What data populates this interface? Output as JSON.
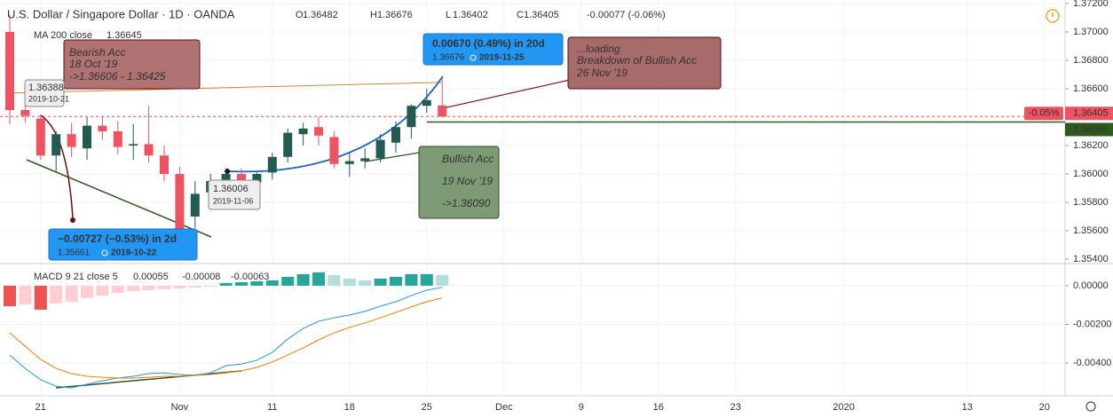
{
  "chart_data": {
    "type": "candlestick",
    "title": "U.S. Dollar / Singapore Dollar · 1D · OANDA",
    "ohlc_labels": [
      "O",
      "H",
      "L",
      "C"
    ],
    "change": "-0.00077 (-0.06%)",
    "x": [
      "2019-10-17",
      "2019-10-18",
      "2019-10-21",
      "2019-10-22",
      "2019-10-23",
      "2019-10-24",
      "2019-10-25",
      "2019-10-28",
      "2019-10-29",
      "2019-10-30",
      "2019-10-31",
      "2019-11-01",
      "2019-11-04",
      "2019-11-05",
      "2019-11-06",
      "2019-11-07",
      "2019-11-08",
      "2019-11-11",
      "2019-11-12",
      "2019-11-13",
      "2019-11-14",
      "2019-11-15",
      "2019-11-18",
      "2019-11-19",
      "2019-11-20",
      "2019-11-21",
      "2019-11-22",
      "2019-11-25",
      "2019-11-26"
    ],
    "open": [
      1.37,
      1.3645,
      1.3639,
      1.3613,
      1.3628,
      1.3618,
      1.3634,
      1.363,
      1.362,
      1.3621,
      1.3613,
      1.36,
      1.357,
      1.3587,
      1.3594,
      1.36,
      1.3594,
      1.3601,
      1.3612,
      1.3628,
      1.3633,
      1.3626,
      1.3607,
      1.3609,
      1.3611,
      1.3622,
      1.3633,
      1.3648,
      1.36482
    ],
    "high": [
      1.3712,
      1.3652,
      1.3642,
      1.363,
      1.3636,
      1.364,
      1.3641,
      1.3637,
      1.3635,
      1.3648,
      1.362,
      1.3605,
      1.3595,
      1.36,
      1.3604,
      1.3604,
      1.3601,
      1.3615,
      1.3632,
      1.3636,
      1.364,
      1.363,
      1.3615,
      1.3618,
      1.3628,
      1.3637,
      1.3649,
      1.366,
      1.36676
    ],
    "low": [
      1.3635,
      1.3636,
      1.361,
      1.3602,
      1.3612,
      1.361,
      1.3624,
      1.3614,
      1.361,
      1.3608,
      1.3595,
      1.3555,
      1.3562,
      1.3575,
      1.359,
      1.3586,
      1.3588,
      1.3596,
      1.3608,
      1.362,
      1.362,
      1.3604,
      1.3598,
      1.3604,
      1.3608,
      1.3615,
      1.3625,
      1.3643,
      1.36402
    ],
    "close": [
      1.3645,
      1.3641,
      1.3613,
      1.3628,
      1.3619,
      1.3634,
      1.363,
      1.3619,
      1.3621,
      1.3613,
      1.36,
      1.356,
      1.3586,
      1.3595,
      1.36,
      1.3593,
      1.36,
      1.3612,
      1.3629,
      1.3632,
      1.3627,
      1.3607,
      1.3609,
      1.3611,
      1.3624,
      1.3633,
      1.3648,
      1.3652,
      1.36405
    ],
    "up_color": "#225b51",
    "down_color": "#ef5361",
    "ma": {
      "name": "MA 200 close",
      "color": "#e0812c",
      "values": [
        1.3657,
        1.36573,
        1.36575,
        1.36578,
        1.36581,
        1.36583,
        1.36586,
        1.36589,
        1.36591,
        1.36594,
        1.36597,
        1.366,
        1.36602,
        1.36605,
        1.36608,
        1.3661,
        1.36613,
        1.36616,
        1.36618,
        1.36621,
        1.36624,
        1.36626,
        1.36629,
        1.36632,
        1.36634,
        1.36637,
        1.3664,
        1.36642,
        1.36645
      ]
    },
    "close_change": "-0.05%",
    "level": 1.36366,
    "level_label": "1.36366",
    "level_color": "#2e5a1c",
    "ylim": [
      1.35375,
      1.37225
    ],
    "yticks": [
      {
        "value": 1.372,
        "label": "1.37200"
      },
      {
        "value": 1.37,
        "label": "1.37000"
      },
      {
        "value": 1.368,
        "label": "1.36800"
      },
      {
        "value": 1.366,
        "label": "1.36600"
      },
      {
        "value": 1.364,
        "label": "1.36400"
      },
      {
        "value": 1.362,
        "label": "1.36200"
      },
      {
        "value": 1.36,
        "label": "1.36000"
      },
      {
        "value": 1.358,
        "label": "1.35800"
      },
      {
        "value": 1.356,
        "label": "1.35600"
      },
      {
        "value": 1.354,
        "label": "1.35400"
      }
    ],
    "xticks": [
      {
        "value": "2019-10-21",
        "label": "21"
      },
      {
        "value": "2019-11-01",
        "label": "Nov"
      },
      {
        "value": "2019-11-11",
        "label": "11"
      },
      {
        "value": "2019-11-18",
        "label": "18"
      },
      {
        "value": "2019-11-25",
        "label": "25"
      },
      {
        "value": "2019-12-02",
        "label": "Dec"
      },
      {
        "value": "2019-12-09",
        "label": "9"
      },
      {
        "value": "2019-12-16",
        "label": "16"
      },
      {
        "value": "2019-12-23",
        "label": "23"
      },
      {
        "value": "2020-01-01",
        "label": "2020"
      },
      {
        "value": "2020-01-13",
        "label": "13"
      },
      {
        "value": "2020-01-20",
        "label": "20"
      }
    ],
    "grid": true,
    "macd": {
      "name": "MACD 9 21 close 5",
      "ylim": [
        -0.0057,
        0.0011
      ],
      "yticks": [
        {
          "value": 0,
          "label": "0.00000"
        },
        {
          "value": -0.002,
          "label": "-0.00200"
        },
        {
          "value": -0.004,
          "label": "-0.00400"
        }
      ],
      "histogram": {
        "palette": [
          "#26a69a",
          "#b2dfdb",
          "#ffcdd2",
          "#ef5350"
        ],
        "values": [
          -0.00106,
          -0.00097,
          -0.00124,
          -0.00092,
          -0.00083,
          -0.00064,
          -0.00051,
          -0.00037,
          -0.00028,
          -0.00023,
          -0.00018,
          -0.00014,
          -9e-05,
          -5e-05,
          0.00014,
          0.00018,
          0.00023,
          0.00028,
          0.00046,
          0.0006,
          0.00069,
          0.00055,
          0.00037,
          0.00028,
          0.00037,
          0.00046,
          0.0006,
          0.0006,
          0.00055
        ]
      },
      "series": [
        {
          "color": "#2196f3",
          "values": [
            -0.00359,
            -0.00428,
            -0.00487,
            -0.0052,
            -0.00529,
            -0.0051,
            -0.00492,
            -0.00478,
            -0.00469,
            -0.00455,
            -0.00451,
            -0.0046,
            -0.00464,
            -0.00451,
            -0.00414,
            -0.00405,
            -0.00386,
            -0.00345,
            -0.00276,
            -0.00221,
            -0.00184,
            -0.00166,
            -0.00152,
            -0.00133,
            -0.00106,
            -0.00083,
            -0.00051,
            -0.00023,
            -8e-05
          ]
        },
        {
          "color": "#f57c00",
          "values": [
            -0.00244,
            -0.00313,
            -0.00382,
            -0.00428,
            -0.00455,
            -0.00469,
            -0.00474,
            -0.00478,
            -0.00478,
            -0.00474,
            -0.00469,
            -0.00469,
            -0.00464,
            -0.0046,
            -0.00451,
            -0.00441,
            -0.00423,
            -0.00395,
            -0.00359,
            -0.00322,
            -0.0028,
            -0.00244,
            -0.00216,
            -0.00193,
            -0.00166,
            -0.00138,
            -0.0011,
            -0.00083,
            -0.00063
          ]
        }
      ]
    },
    "annotations": [
      {
        "lines": [
          "Bearish Acc",
          "18 Oct '19",
          "->1.36606 - 1.36425"
        ]
      },
      {
        "lines": [
          "1.36388",
          "2019-10-21"
        ]
      },
      {
        "lines": [
          "−0.00727 (−0.53%) in 2d",
          "1.35661",
          "2019-10-22"
        ]
      },
      {
        "lines": [
          "0.00670 (0.49%) in 20d",
          "1.36676",
          "2019-11-25"
        ]
      },
      {
        "lines": [
          "...loading",
          "Breakdown of Bullish Acc",
          "26 Nov '19"
        ]
      },
      {
        "lines": [
          "1.36006",
          "2019-11-06"
        ]
      },
      {
        "lines": [
          "Bullish Acc",
          "19 Nov '19",
          "->1.36090"
        ]
      }
    ]
  }
}
